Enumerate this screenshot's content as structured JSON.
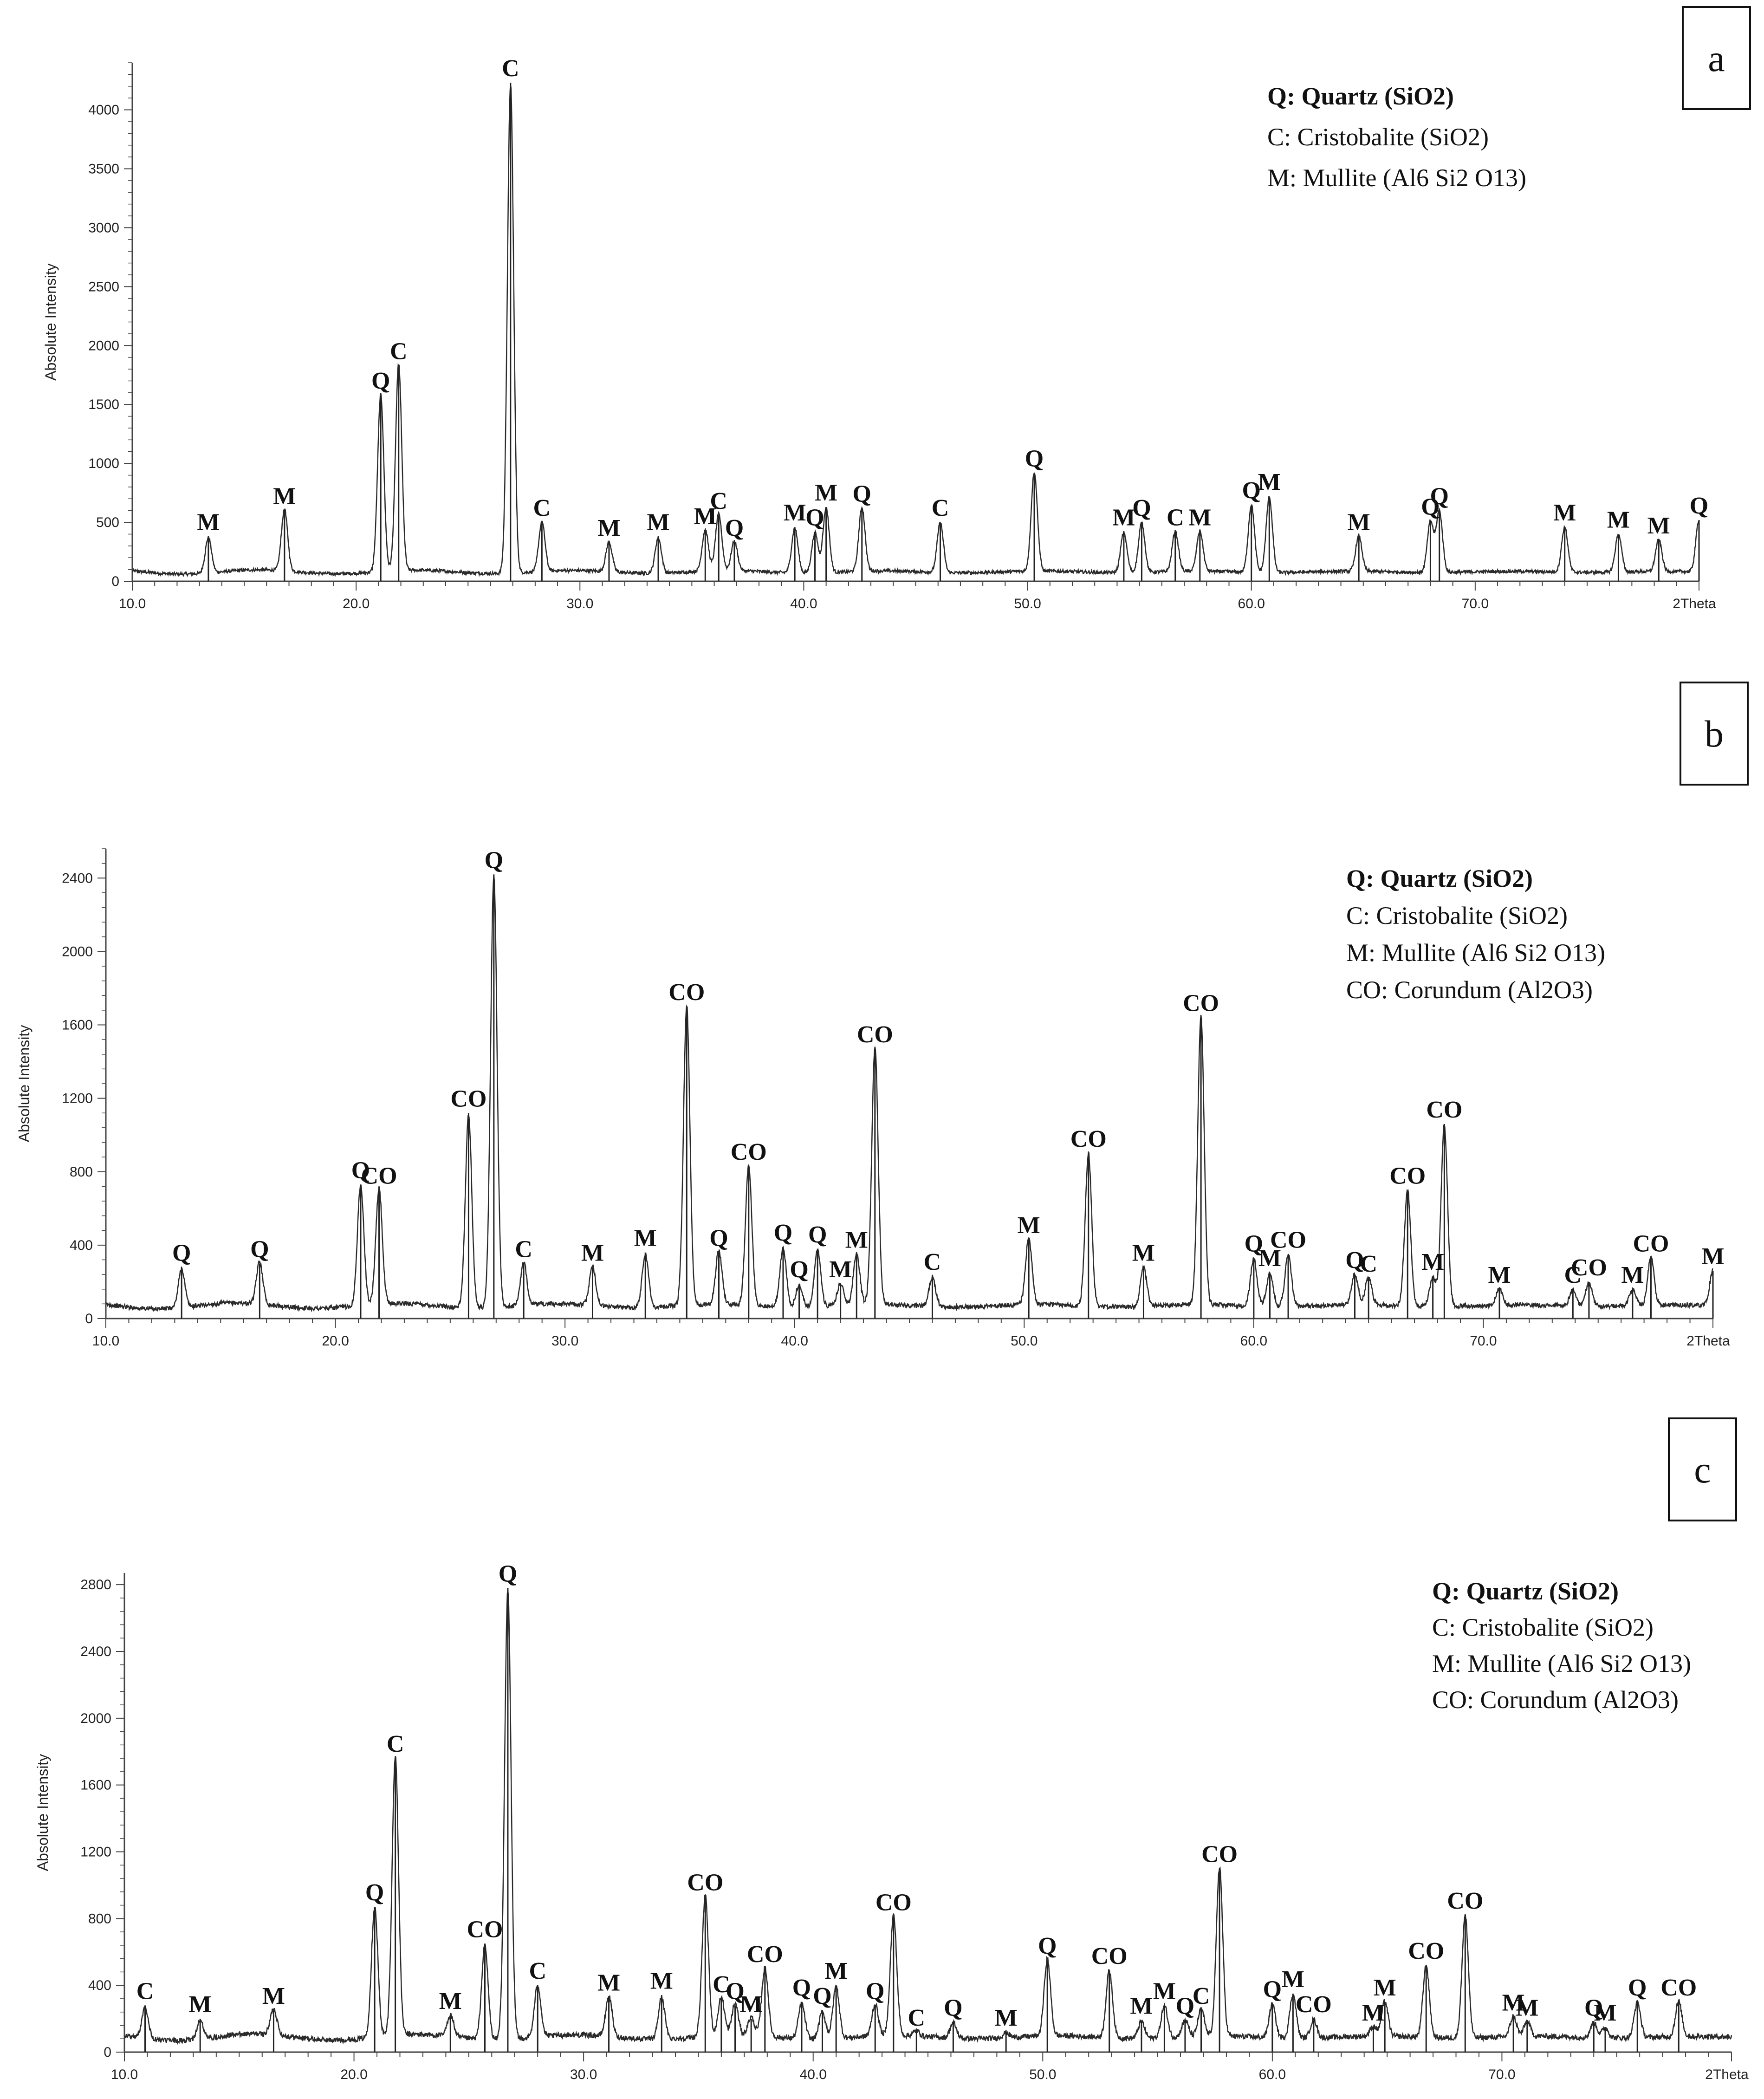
{
  "chart_data": [
    {
      "type": "line",
      "panel_label": "a",
      "ylabel": "Absolute Intensity",
      "xlabel": "2Theta",
      "xlim": [
        10,
        80
      ],
      "ylim": [
        0,
        4400
      ],
      "x_ticks": [
        "10.0",
        "20.0",
        "30.0",
        "40.0",
        "50.0",
        "60.0",
        "70.0"
      ],
      "y_ticks": [
        "0",
        "500",
        "1000",
        "1500",
        "2000",
        "2500",
        "3000",
        "3500",
        "4000"
      ],
      "y_tick_values": [
        0,
        500,
        1000,
        1500,
        2000,
        2500,
        3000,
        3500,
        4000
      ],
      "legend": [
        "Q: Quartz (SiO2)",
        "C: Cristobalite (SiO2)",
        "M: Mullite (Al6 Si2 O13)"
      ],
      "baseline": 80,
      "peaks": [
        {
          "x": 13.4,
          "y": 380,
          "label": "M"
        },
        {
          "x": 16.8,
          "y": 600,
          "label": "M"
        },
        {
          "x": 21.1,
          "y": 1580,
          "label": "Q"
        },
        {
          "x": 21.9,
          "y": 1830,
          "label": "C"
        },
        {
          "x": 26.9,
          "y": 4230,
          "label": "C"
        },
        {
          "x": 28.3,
          "y": 500,
          "label": "C"
        },
        {
          "x": 31.3,
          "y": 330,
          "label": "M"
        },
        {
          "x": 33.5,
          "y": 380,
          "label": "M"
        },
        {
          "x": 35.6,
          "y": 430,
          "label": "M"
        },
        {
          "x": 36.2,
          "y": 560,
          "label": "C"
        },
        {
          "x": 36.9,
          "y": 330,
          "label": "Q"
        },
        {
          "x": 39.6,
          "y": 460,
          "label": "M"
        },
        {
          "x": 40.5,
          "y": 420,
          "label": "Q"
        },
        {
          "x": 41.0,
          "y": 630,
          "label": "M"
        },
        {
          "x": 42.6,
          "y": 620,
          "label": "Q"
        },
        {
          "x": 46.1,
          "y": 500,
          "label": "C"
        },
        {
          "x": 50.3,
          "y": 920,
          "label": "Q"
        },
        {
          "x": 54.3,
          "y": 420,
          "label": "M"
        },
        {
          "x": 55.1,
          "y": 500,
          "label": "Q"
        },
        {
          "x": 56.6,
          "y": 420,
          "label": "C"
        },
        {
          "x": 57.7,
          "y": 420,
          "label": "M"
        },
        {
          "x": 60.0,
          "y": 650,
          "label": "Q"
        },
        {
          "x": 60.8,
          "y": 720,
          "label": "M"
        },
        {
          "x": 64.8,
          "y": 380,
          "label": "M"
        },
        {
          "x": 68.0,
          "y": 510,
          "label": "Q"
        },
        {
          "x": 68.4,
          "y": 600,
          "label": "Q"
        },
        {
          "x": 74.0,
          "y": 460,
          "label": "M"
        },
        {
          "x": 76.4,
          "y": 400,
          "label": "M"
        },
        {
          "x": 78.2,
          "y": 350,
          "label": "M"
        },
        {
          "x": 80.0,
          "y": 520,
          "label": "Q"
        }
      ]
    },
    {
      "type": "line",
      "panel_label": "b",
      "ylabel": "Absolute Intensity",
      "xlabel": "2Theta",
      "xlim": [
        10,
        80
      ],
      "ylim": [
        0,
        2560
      ],
      "x_ticks": [
        "10.0",
        "20.0",
        "30.0",
        "40.0",
        "50.0",
        "60.0",
        "70.0"
      ],
      "y_ticks": [
        "0",
        "400",
        "800",
        "1200",
        "1600",
        "2000",
        "2400"
      ],
      "y_tick_values": [
        0,
        400,
        800,
        1200,
        1600,
        2000,
        2400
      ],
      "legend": [
        "Q: Quartz (SiO2)",
        "C: Cristobalite (SiO2)",
        "M: Mullite (Al6 Si2 O13)",
        "CO: Corundum (Al2O3)"
      ],
      "baseline": 70,
      "peaks": [
        {
          "x": 13.3,
          "y": 280,
          "label": "Q"
        },
        {
          "x": 16.7,
          "y": 300,
          "label": "Q"
        },
        {
          "x": 21.1,
          "y": 730,
          "label": "Q"
        },
        {
          "x": 21.9,
          "y": 700,
          "label": "CO"
        },
        {
          "x": 25.8,
          "y": 1120,
          "label": "CO"
        },
        {
          "x": 26.9,
          "y": 2420,
          "label": "Q"
        },
        {
          "x": 28.2,
          "y": 300,
          "label": "C"
        },
        {
          "x": 31.2,
          "y": 280,
          "label": "M"
        },
        {
          "x": 33.5,
          "y": 360,
          "label": "M"
        },
        {
          "x": 35.3,
          "y": 1700,
          "label": "CO"
        },
        {
          "x": 36.7,
          "y": 360,
          "label": "Q"
        },
        {
          "x": 38.0,
          "y": 830,
          "label": "CO"
        },
        {
          "x": 39.5,
          "y": 390,
          "label": "Q"
        },
        {
          "x": 40.2,
          "y": 190,
          "label": "Q"
        },
        {
          "x": 41.0,
          "y": 380,
          "label": "Q"
        },
        {
          "x": 42.0,
          "y": 190,
          "label": "M"
        },
        {
          "x": 42.7,
          "y": 350,
          "label": "M"
        },
        {
          "x": 43.5,
          "y": 1470,
          "label": "CO"
        },
        {
          "x": 46.0,
          "y": 230,
          "label": "C"
        },
        {
          "x": 50.2,
          "y": 430,
          "label": "M"
        },
        {
          "x": 52.8,
          "y": 900,
          "label": "CO"
        },
        {
          "x": 55.2,
          "y": 280,
          "label": "M"
        },
        {
          "x": 57.7,
          "y": 1640,
          "label": "CO"
        },
        {
          "x": 60.0,
          "y": 330,
          "label": "Q"
        },
        {
          "x": 60.7,
          "y": 250,
          "label": "M"
        },
        {
          "x": 61.5,
          "y": 350,
          "label": "CO"
        },
        {
          "x": 64.4,
          "y": 240,
          "label": "Q"
        },
        {
          "x": 65.0,
          "y": 220,
          "label": "C"
        },
        {
          "x": 66.7,
          "y": 700,
          "label": "CO"
        },
        {
          "x": 67.8,
          "y": 230,
          "label": "M"
        },
        {
          "x": 68.3,
          "y": 1060,
          "label": "CO"
        },
        {
          "x": 70.7,
          "y": 160,
          "label": "M"
        },
        {
          "x": 73.9,
          "y": 160,
          "label": "C"
        },
        {
          "x": 74.6,
          "y": 200,
          "label": "CO"
        },
        {
          "x": 76.5,
          "y": 160,
          "label": "M"
        },
        {
          "x": 77.3,
          "y": 330,
          "label": "CO"
        },
        {
          "x": 80.0,
          "y": 260,
          "label": "M"
        }
      ]
    },
    {
      "type": "line",
      "panel_label": "c",
      "ylabel": "Absolute Intensity",
      "xlabel": "2Theta",
      "xlim": [
        10,
        80
      ],
      "ylim": [
        0,
        2870
      ],
      "x_ticks": [
        "10.0",
        "20.0",
        "30.0",
        "40.0",
        "50.0",
        "60.0",
        "70.0"
      ],
      "y_ticks": [
        "0",
        "400",
        "800",
        "1200",
        "1600",
        "2000",
        "2400",
        "2800"
      ],
      "y_tick_values": [
        0,
        400,
        800,
        1200,
        1600,
        2000,
        2400,
        2800
      ],
      "legend": [
        "Q: Quartz (SiO2)",
        "C: Cristobalite (SiO2)",
        "M: Mullite (Al6 Si2 O13)",
        "CO: Corundum (Al2O3)"
      ],
      "baseline": 90,
      "peaks": [
        {
          "x": 10.9,
          "y": 280,
          "label": "C"
        },
        {
          "x": 13.3,
          "y": 200,
          "label": "M"
        },
        {
          "x": 16.5,
          "y": 250,
          "label": "M"
        },
        {
          "x": 20.9,
          "y": 870,
          "label": "Q"
        },
        {
          "x": 21.8,
          "y": 1760,
          "label": "C"
        },
        {
          "x": 24.2,
          "y": 220,
          "label": "M"
        },
        {
          "x": 25.7,
          "y": 650,
          "label": "CO"
        },
        {
          "x": 26.7,
          "y": 2780,
          "label": "Q"
        },
        {
          "x": 28.0,
          "y": 400,
          "label": "C"
        },
        {
          "x": 31.1,
          "y": 330,
          "label": "M"
        },
        {
          "x": 33.4,
          "y": 340,
          "label": "M"
        },
        {
          "x": 35.3,
          "y": 930,
          "label": "CO"
        },
        {
          "x": 36.0,
          "y": 320,
          "label": "C"
        },
        {
          "x": 36.6,
          "y": 280,
          "label": "Q"
        },
        {
          "x": 37.3,
          "y": 200,
          "label": "M"
        },
        {
          "x": 37.9,
          "y": 500,
          "label": "CO"
        },
        {
          "x": 39.5,
          "y": 300,
          "label": "Q"
        },
        {
          "x": 40.4,
          "y": 250,
          "label": "Q"
        },
        {
          "x": 41.0,
          "y": 400,
          "label": "M"
        },
        {
          "x": 42.7,
          "y": 280,
          "label": "Q"
        },
        {
          "x": 43.5,
          "y": 810,
          "label": "CO"
        },
        {
          "x": 44.5,
          "y": 120,
          "label": "C"
        },
        {
          "x": 46.1,
          "y": 180,
          "label": "Q"
        },
        {
          "x": 48.4,
          "y": 120,
          "label": "M"
        },
        {
          "x": 50.2,
          "y": 550,
          "label": "Q"
        },
        {
          "x": 52.9,
          "y": 490,
          "label": "CO"
        },
        {
          "x": 54.3,
          "y": 190,
          "label": "M"
        },
        {
          "x": 55.3,
          "y": 280,
          "label": "M"
        },
        {
          "x": 56.2,
          "y": 190,
          "label": "Q"
        },
        {
          "x": 56.9,
          "y": 250,
          "label": "C"
        },
        {
          "x": 57.7,
          "y": 1100,
          "label": "CO"
        },
        {
          "x": 60.0,
          "y": 290,
          "label": "Q"
        },
        {
          "x": 60.9,
          "y": 350,
          "label": "M"
        },
        {
          "x": 61.8,
          "y": 200,
          "label": "CO"
        },
        {
          "x": 64.4,
          "y": 150,
          "label": "M"
        },
        {
          "x": 64.9,
          "y": 300,
          "label": "M"
        },
        {
          "x": 66.7,
          "y": 520,
          "label": "CO"
        },
        {
          "x": 68.4,
          "y": 820,
          "label": "CO"
        },
        {
          "x": 70.5,
          "y": 210,
          "label": "M"
        },
        {
          "x": 71.1,
          "y": 180,
          "label": "M"
        },
        {
          "x": 74.0,
          "y": 180,
          "label": "Q"
        },
        {
          "x": 74.5,
          "y": 150,
          "label": "M"
        },
        {
          "x": 75.9,
          "y": 300,
          "label": "Q"
        },
        {
          "x": 77.7,
          "y": 300,
          "label": "CO"
        }
      ]
    }
  ]
}
